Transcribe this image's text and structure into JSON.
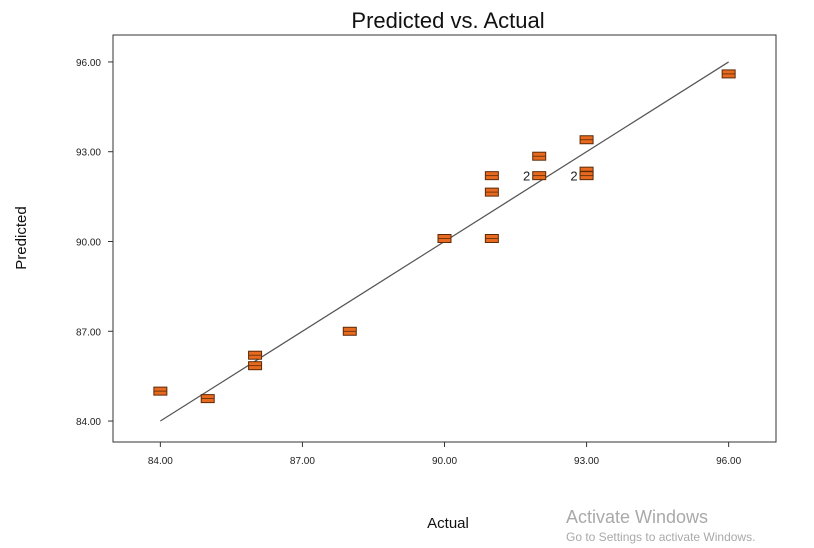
{
  "chart_data": {
    "type": "scatter",
    "title": "Predicted vs. Actual",
    "xlabel": "Actual",
    "ylabel": "Predicted",
    "xlim": [
      83.0,
      97.0
    ],
    "ylim": [
      83.3,
      96.9
    ],
    "x_ticks": [
      "84.00",
      "87.00",
      "90.00",
      "93.00",
      "96.00"
    ],
    "y_ticks": [
      "84.00",
      "87.00",
      "90.00",
      "93.00",
      "96.00"
    ],
    "grid": false,
    "marker_color": "#e86a1e",
    "line_color": "#555555",
    "reference_line": {
      "x": [
        84.0,
        96.0
      ],
      "y": [
        84.0,
        96.0
      ]
    },
    "points": [
      {
        "x": 84.0,
        "y": 85.0
      },
      {
        "x": 85.0,
        "y": 84.75
      },
      {
        "x": 86.0,
        "y": 86.2
      },
      {
        "x": 86.0,
        "y": 85.85
      },
      {
        "x": 88.0,
        "y": 87.0
      },
      {
        "x": 90.0,
        "y": 90.1
      },
      {
        "x": 91.0,
        "y": 90.1
      },
      {
        "x": 91.0,
        "y": 91.65
      },
      {
        "x": 91.0,
        "y": 92.2
      },
      {
        "x": 92.0,
        "y": 92.85
      },
      {
        "x": 92.0,
        "y": 92.2,
        "label": "2"
      },
      {
        "x": 93.0,
        "y": 93.4
      },
      {
        "x": 93.0,
        "y": 92.35
      },
      {
        "x": 93.0,
        "y": 92.2,
        "label": "2"
      },
      {
        "x": 96.0,
        "y": 95.6
      }
    ]
  },
  "watermark": {
    "line1": "Activate Windows",
    "line2": "Go to Settings to activate Windows."
  }
}
